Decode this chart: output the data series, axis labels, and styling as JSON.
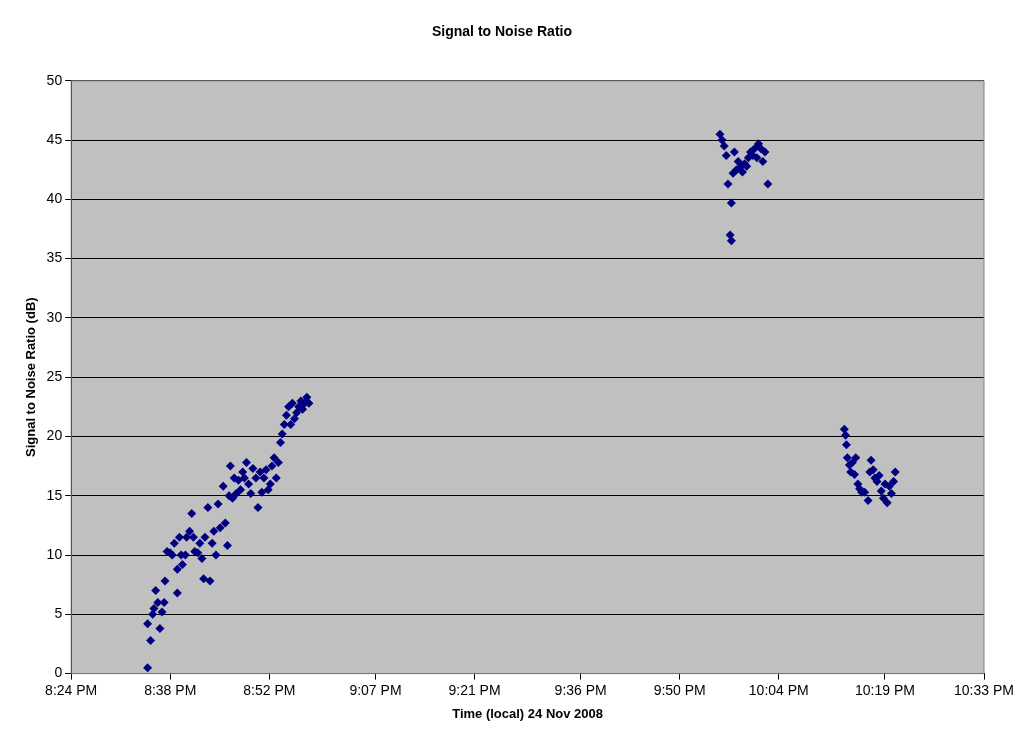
{
  "chart_data": {
    "type": "scatter",
    "title": "Signal to Noise Ratio",
    "xlabel": "Time (local) 24 Nov 2008",
    "ylabel": "Signal to Noise Ratio (dB)",
    "xlim": [
      20.4,
      22.55
    ],
    "xticks": [
      {
        "value": 20.4,
        "label": "8:24 PM"
      },
      {
        "value": 20.6333,
        "label": "8:38 PM"
      },
      {
        "value": 20.8667,
        "label": "8:52 PM"
      },
      {
        "value": 21.1167,
        "label": "9:07 PM"
      },
      {
        "value": 21.35,
        "label": "9:21 PM"
      },
      {
        "value": 21.6,
        "label": "9:36 PM"
      },
      {
        "value": 21.8333,
        "label": "9:50 PM"
      },
      {
        "value": 22.0667,
        "label": "10:04 PM"
      },
      {
        "value": 22.3167,
        "label": "10:19 PM"
      },
      {
        "value": 22.55,
        "label": "10:33 PM"
      }
    ],
    "ylim": [
      0,
      50
    ],
    "yticks": [
      0,
      5,
      10,
      15,
      20,
      25,
      30,
      35,
      40,
      45,
      50
    ],
    "grid": "y",
    "marker": "diamond",
    "legend": false,
    "series": [
      {
        "color": "#000080",
        "x": [
          20.58,
          20.587,
          20.58,
          20.592,
          20.599,
          20.604,
          20.595,
          20.609,
          20.614,
          20.619,
          20.621,
          20.626,
          20.633,
          20.638,
          20.643,
          20.65,
          20.65,
          20.655,
          20.659,
          20.662,
          20.669,
          20.672,
          20.679,
          20.684,
          20.688,
          20.691,
          20.698,
          20.703,
          20.708,
          20.712,
          20.715,
          20.722,
          20.727,
          20.732,
          20.736,
          20.741,
          20.746,
          20.751,
          20.758,
          20.763,
          20.768,
          20.772,
          20.775,
          20.78,
          20.784,
          20.789,
          20.794,
          20.799,
          20.804,
          20.808,
          20.813,
          20.818,
          20.823,
          20.828,
          20.835,
          20.84,
          20.845,
          20.849,
          20.854,
          20.859,
          20.864,
          20.869,
          20.873,
          20.878,
          20.883,
          20.888,
          20.893,
          20.897,
          20.902,
          20.907,
          20.912,
          20.917,
          20.921,
          20.926,
          20.931,
          20.936,
          20.941,
          20.945,
          20.95,
          20.955,
          20.96,
          21.928,
          21.933,
          21.938,
          21.943,
          21.947,
          21.952,
          21.955,
          21.955,
          21.959,
          21.962,
          21.967,
          21.971,
          21.976,
          21.981,
          21.986,
          21.991,
          21.995,
          22.0,
          22.005,
          22.01,
          22.015,
          22.019,
          22.024,
          22.029,
          22.034,
          22.041,
          22.221,
          22.224,
          22.226,
          22.228,
          22.233,
          22.236,
          22.24,
          22.245,
          22.248,
          22.253,
          22.257,
          22.262,
          22.269,
          22.277,
          22.281,
          22.284,
          22.289,
          22.293,
          22.298,
          22.303,
          22.308,
          22.313,
          22.317,
          22.322,
          22.327,
          22.332,
          22.337,
          22.341
        ],
        "values": [
          0.5,
          2.8,
          4.2,
          5,
          7,
          6,
          5.5,
          3.8,
          5.2,
          6,
          7.8,
          10.3,
          10.2,
          10,
          11,
          8.8,
          6.8,
          11.5,
          10,
          9.2,
          10,
          11.5,
          12,
          13.5,
          11.5,
          10.3,
          10.2,
          11,
          9.7,
          8,
          11.5,
          14,
          7.8,
          11,
          12,
          10,
          14.3,
          12.3,
          15.8,
          12.7,
          10.8,
          15,
          17.5,
          14.8,
          16.5,
          15.2,
          16.3,
          15.5,
          17,
          16.5,
          17.8,
          16,
          15.2,
          17.3,
          16.5,
          14,
          17,
          15.3,
          16.5,
          17.2,
          15.5,
          16,
          17.5,
          18.2,
          16.5,
          17.8,
          19.5,
          20.2,
          21,
          21.8,
          22.5,
          21,
          22.8,
          21.5,
          22,
          22.5,
          23,
          22.3,
          22.8,
          23.3,
          22.8,
          45.5,
          45,
          44.5,
          43.7,
          41.3,
          37,
          36.5,
          39.7,
          42.2,
          44,
          42.5,
          43.2,
          42.7,
          42.3,
          43,
          42.8,
          43.5,
          44,
          43.7,
          44.3,
          43.5,
          44.7,
          44.3,
          43.2,
          44,
          41.3,
          20.6,
          20.1,
          19.3,
          18.2,
          17.6,
          17,
          17.8,
          16.8,
          18.2,
          16,
          15.6,
          15.3,
          15.3,
          14.6,
          17,
          18,
          17.2,
          16.5,
          16.2,
          16.7,
          15.4,
          14.8,
          16,
          14.4,
          15.8,
          15.2,
          16.2,
          17
        ]
      }
    ]
  }
}
